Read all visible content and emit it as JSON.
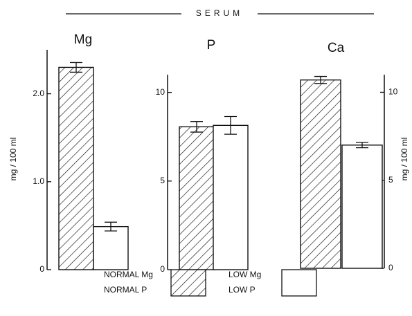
{
  "title": "SERUM",
  "chart_data": [
    {
      "type": "bar",
      "title": "Mg",
      "y_label": "mg / 100 ml",
      "values": [
        2.3,
        0.49
      ],
      "errors": [
        0.055,
        0.05
      ],
      "patterns": [
        "hatch",
        "none"
      ],
      "ylim": [
        0,
        2.5
      ],
      "yticks": [
        0,
        {
          "value": 1,
          "label": "1.0"
        },
        {
          "value": 2,
          "label": "2.0"
        }
      ],
      "axis_side": "left"
    },
    {
      "type": "bar",
      "title": "P",
      "values": [
        8.06,
        8.14
      ],
      "errors": [
        0.3,
        0.5
      ],
      "patterns": [
        "hatch",
        "none"
      ],
      "ylim": [
        0,
        11
      ],
      "yticks": [
        0,
        5,
        10
      ],
      "axis_side": "left"
    },
    {
      "type": "bar",
      "title": "Ca",
      "y_label": "mg / 100 ml",
      "values": [
        10.7,
        7.0
      ],
      "errors": [
        0.2,
        0.15
      ],
      "patterns": [
        "hatch",
        "none"
      ],
      "ylim": [
        0,
        11
      ],
      "yticks": [
        0,
        5,
        10
      ],
      "axis_side": "right"
    }
  ],
  "legend": [
    {
      "labels": [
        "NORMAL Mg",
        "NORMAL P"
      ],
      "pattern": "hatch"
    },
    {
      "labels": [
        "LOW Mg",
        "LOW P"
      ],
      "pattern": "none"
    }
  ]
}
